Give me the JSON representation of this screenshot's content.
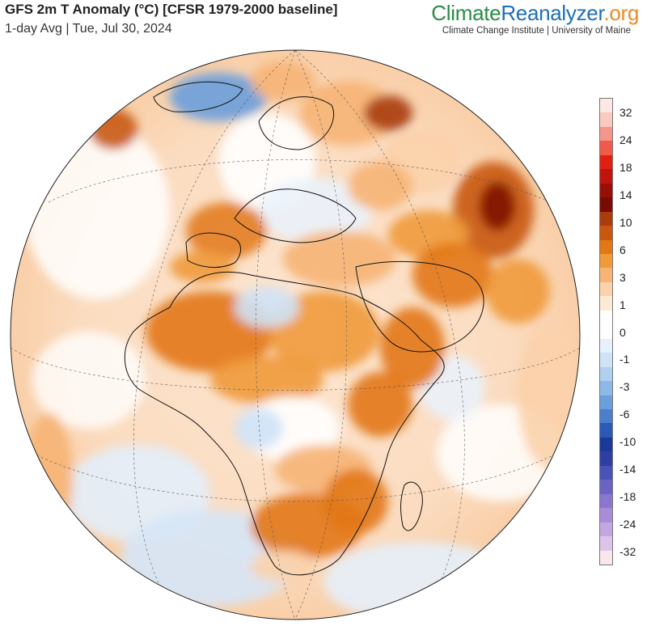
{
  "header": {
    "title": "GFS 2m T Anomaly (°C) [CFSR 1979-2000 baseline]",
    "subtitle": "1-day Avg | Tue, Jul 30, 2024"
  },
  "brand": {
    "part1": "Climate",
    "part2": "Reanalyzer",
    "part3": ".org",
    "tagline": "Climate Change Institute | University of Maine",
    "colors": {
      "climate": "#2a8c43",
      "reanalyzer": "#1d6fb8",
      "org": "#f08a24"
    }
  },
  "map": {
    "projection": "orthographic globe centered on Africa and Europe",
    "regions_visible": [
      "Europe",
      "Africa",
      "Middle East",
      "Greenland",
      "Atlantic Ocean",
      "Indian Ocean"
    ]
  },
  "legend": {
    "labels": [
      "32",
      "24",
      "18",
      "14",
      "10",
      "6",
      "3",
      "1",
      "0",
      "-1",
      "-3",
      "-6",
      "-10",
      "-14",
      "-18",
      "-24",
      "-32"
    ],
    "colors": [
      "#fde8e6",
      "#fbc9c0",
      "#f4978a",
      "#ef5a4a",
      "#e01e12",
      "#c0150c",
      "#980f08",
      "#7a0a04",
      "#a83c0a",
      "#c8580f",
      "#e27715",
      "#f09a3a",
      "#f6b476",
      "#fbd2ab",
      "#fde9d6",
      "#ffffff",
      "#ffffff",
      "#e7f1fb",
      "#cfe2f6",
      "#b1d0f0",
      "#8db9e8",
      "#6a9fdc",
      "#4a7fcc",
      "#2b59b5",
      "#1b3a97",
      "#2e3ea3",
      "#4a52b8",
      "#6b63c4",
      "#8b76cf",
      "#a98cd8",
      "#c4a6e0",
      "#dcc3ea",
      "#fbe6ee"
    ]
  }
}
